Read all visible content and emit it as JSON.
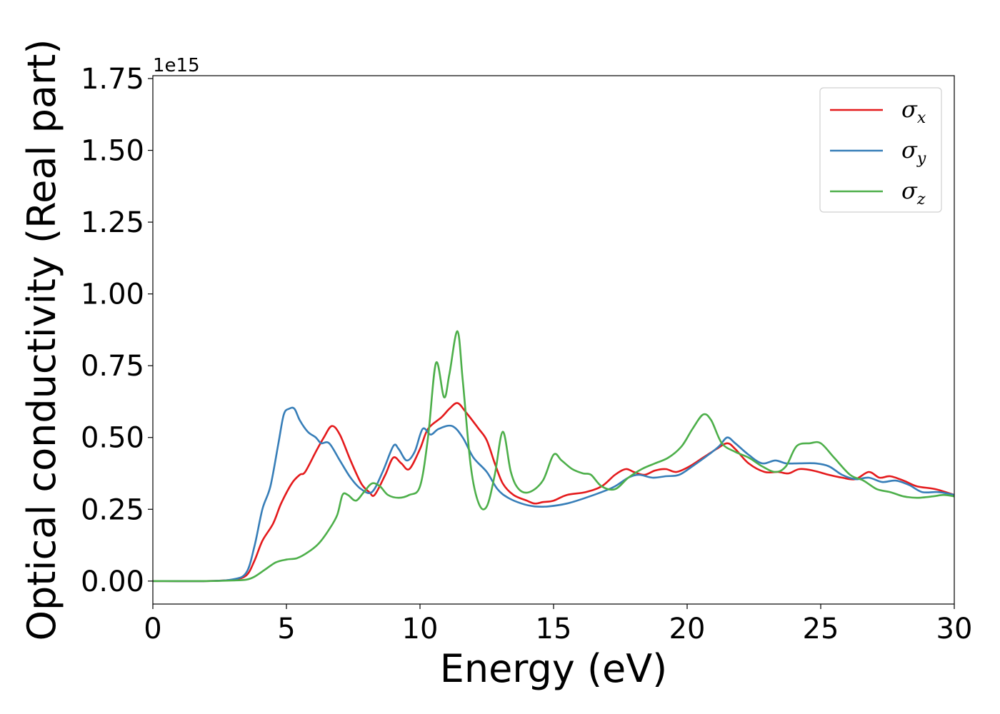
{
  "chart_data": {
    "type": "line",
    "xlabel": "Energy (eV)",
    "ylabel": "Optical conductivity (Real part)",
    "y_offset_label": "1e15",
    "xlim": [
      0,
      30
    ],
    "ylim": [
      -0.08,
      1.76
    ],
    "x_ticks": [
      0,
      5,
      10,
      15,
      20,
      25,
      30
    ],
    "x_tick_labels": [
      "0",
      "5",
      "10",
      "15",
      "20",
      "25",
      "30"
    ],
    "y_ticks": [
      0.0,
      0.25,
      0.5,
      0.75,
      1.0,
      1.25,
      1.5,
      1.75
    ],
    "y_tick_labels": [
      "0.00",
      "0.25",
      "0.50",
      "0.75",
      "1.00",
      "1.25",
      "1.50",
      "1.75"
    ],
    "grid": false,
    "legend_position": "top-right",
    "series": [
      {
        "name": "σ",
        "subscript": "x",
        "color": "#e41a1c",
        "points": [
          [
            0,
            0.0
          ],
          [
            2,
            0.0
          ],
          [
            3,
            0.005
          ],
          [
            3.5,
            0.02
          ],
          [
            3.8,
            0.07
          ],
          [
            4.1,
            0.14
          ],
          [
            4.5,
            0.2
          ],
          [
            4.8,
            0.27
          ],
          [
            5.2,
            0.34
          ],
          [
            5.5,
            0.37
          ],
          [
            5.7,
            0.38
          ],
          [
            6.1,
            0.45
          ],
          [
            6.4,
            0.5
          ],
          [
            6.7,
            0.54
          ],
          [
            7.0,
            0.51
          ],
          [
            7.4,
            0.42
          ],
          [
            7.8,
            0.34
          ],
          [
            8.1,
            0.31
          ],
          [
            8.3,
            0.3
          ],
          [
            8.7,
            0.37
          ],
          [
            9.0,
            0.43
          ],
          [
            9.3,
            0.41
          ],
          [
            9.6,
            0.39
          ],
          [
            10.0,
            0.46
          ],
          [
            10.3,
            0.53
          ],
          [
            10.8,
            0.57
          ],
          [
            11.1,
            0.6
          ],
          [
            11.4,
            0.62
          ],
          [
            11.7,
            0.59
          ],
          [
            12.2,
            0.53
          ],
          [
            12.5,
            0.49
          ],
          [
            12.8,
            0.41
          ],
          [
            13.1,
            0.34
          ],
          [
            13.5,
            0.3
          ],
          [
            14.0,
            0.28
          ],
          [
            14.3,
            0.27
          ],
          [
            14.6,
            0.275
          ],
          [
            15.0,
            0.28
          ],
          [
            15.5,
            0.3
          ],
          [
            16.2,
            0.31
          ],
          [
            16.8,
            0.33
          ],
          [
            17.3,
            0.37
          ],
          [
            17.7,
            0.39
          ],
          [
            18.0,
            0.38
          ],
          [
            18.4,
            0.37
          ],
          [
            18.8,
            0.385
          ],
          [
            19.2,
            0.39
          ],
          [
            19.6,
            0.38
          ],
          [
            20.1,
            0.4
          ],
          [
            20.6,
            0.43
          ],
          [
            21.1,
            0.46
          ],
          [
            21.5,
            0.48
          ],
          [
            21.8,
            0.46
          ],
          [
            22.3,
            0.41
          ],
          [
            22.9,
            0.38
          ],
          [
            23.4,
            0.38
          ],
          [
            23.8,
            0.375
          ],
          [
            24.2,
            0.39
          ],
          [
            24.7,
            0.385
          ],
          [
            25.3,
            0.37
          ],
          [
            25.8,
            0.36
          ],
          [
            26.3,
            0.355
          ],
          [
            26.8,
            0.38
          ],
          [
            27.2,
            0.36
          ],
          [
            27.6,
            0.365
          ],
          [
            28.1,
            0.35
          ],
          [
            28.6,
            0.33
          ],
          [
            29.3,
            0.32
          ],
          [
            30,
            0.3
          ]
        ]
      },
      {
        "name": "σ",
        "subscript": "y",
        "color": "#377eb8",
        "points": [
          [
            0,
            0.0
          ],
          [
            2,
            0.0
          ],
          [
            3,
            0.006
          ],
          [
            3.5,
            0.03
          ],
          [
            3.8,
            0.12
          ],
          [
            4.1,
            0.25
          ],
          [
            4.4,
            0.33
          ],
          [
            4.7,
            0.48
          ],
          [
            4.9,
            0.58
          ],
          [
            5.1,
            0.6
          ],
          [
            5.3,
            0.6
          ],
          [
            5.5,
            0.56
          ],
          [
            5.8,
            0.52
          ],
          [
            6.1,
            0.5
          ],
          [
            6.3,
            0.48
          ],
          [
            6.6,
            0.48
          ],
          [
            7.0,
            0.42
          ],
          [
            7.4,
            0.36
          ],
          [
            7.8,
            0.32
          ],
          [
            8.2,
            0.31
          ],
          [
            8.6,
            0.38
          ],
          [
            9.0,
            0.47
          ],
          [
            9.2,
            0.46
          ],
          [
            9.5,
            0.42
          ],
          [
            9.8,
            0.45
          ],
          [
            10.1,
            0.53
          ],
          [
            10.4,
            0.51
          ],
          [
            10.7,
            0.53
          ],
          [
            11.2,
            0.54
          ],
          [
            11.6,
            0.5
          ],
          [
            12.0,
            0.43
          ],
          [
            12.5,
            0.38
          ],
          [
            12.9,
            0.32
          ],
          [
            13.3,
            0.29
          ],
          [
            13.8,
            0.27
          ],
          [
            14.3,
            0.26
          ],
          [
            14.8,
            0.26
          ],
          [
            15.5,
            0.27
          ],
          [
            16.2,
            0.29
          ],
          [
            16.8,
            0.31
          ],
          [
            17.3,
            0.33
          ],
          [
            17.8,
            0.36
          ],
          [
            18.2,
            0.37
          ],
          [
            18.7,
            0.36
          ],
          [
            19.2,
            0.365
          ],
          [
            19.7,
            0.37
          ],
          [
            20.2,
            0.4
          ],
          [
            20.8,
            0.44
          ],
          [
            21.2,
            0.47
          ],
          [
            21.5,
            0.5
          ],
          [
            21.8,
            0.48
          ],
          [
            22.3,
            0.44
          ],
          [
            22.8,
            0.41
          ],
          [
            23.3,
            0.42
          ],
          [
            23.7,
            0.41
          ],
          [
            24.2,
            0.41
          ],
          [
            24.8,
            0.41
          ],
          [
            25.3,
            0.4
          ],
          [
            25.8,
            0.37
          ],
          [
            26.3,
            0.355
          ],
          [
            26.8,
            0.36
          ],
          [
            27.3,
            0.345
          ],
          [
            27.8,
            0.35
          ],
          [
            28.3,
            0.335
          ],
          [
            28.8,
            0.31
          ],
          [
            29.4,
            0.31
          ],
          [
            30,
            0.3
          ]
        ]
      },
      {
        "name": "σ",
        "subscript": "z",
        "color": "#4daf4a",
        "points": [
          [
            0,
            0.0
          ],
          [
            2,
            0.0
          ],
          [
            3,
            0.002
          ],
          [
            3.5,
            0.005
          ],
          [
            3.8,
            0.015
          ],
          [
            4.2,
            0.04
          ],
          [
            4.6,
            0.065
          ],
          [
            5.0,
            0.075
          ],
          [
            5.4,
            0.08
          ],
          [
            5.8,
            0.1
          ],
          [
            6.2,
            0.13
          ],
          [
            6.6,
            0.18
          ],
          [
            6.9,
            0.23
          ],
          [
            7.1,
            0.3
          ],
          [
            7.3,
            0.3
          ],
          [
            7.6,
            0.28
          ],
          [
            7.9,
            0.31
          ],
          [
            8.2,
            0.34
          ],
          [
            8.5,
            0.33
          ],
          [
            8.8,
            0.3
          ],
          [
            9.2,
            0.29
          ],
          [
            9.6,
            0.3
          ],
          [
            10.0,
            0.33
          ],
          [
            10.3,
            0.5
          ],
          [
            10.6,
            0.76
          ],
          [
            10.9,
            0.64
          ],
          [
            11.1,
            0.72
          ],
          [
            11.4,
            0.87
          ],
          [
            11.6,
            0.7
          ],
          [
            11.9,
            0.4
          ],
          [
            12.2,
            0.27
          ],
          [
            12.5,
            0.26
          ],
          [
            12.8,
            0.37
          ],
          [
            13.1,
            0.52
          ],
          [
            13.4,
            0.38
          ],
          [
            13.7,
            0.32
          ],
          [
            14.1,
            0.31
          ],
          [
            14.6,
            0.35
          ],
          [
            15.0,
            0.44
          ],
          [
            15.3,
            0.42
          ],
          [
            15.7,
            0.39
          ],
          [
            16.1,
            0.375
          ],
          [
            16.4,
            0.37
          ],
          [
            16.8,
            0.33
          ],
          [
            17.3,
            0.32
          ],
          [
            17.8,
            0.36
          ],
          [
            18.3,
            0.39
          ],
          [
            18.8,
            0.41
          ],
          [
            19.3,
            0.43
          ],
          [
            19.8,
            0.47
          ],
          [
            20.2,
            0.53
          ],
          [
            20.6,
            0.58
          ],
          [
            20.9,
            0.56
          ],
          [
            21.3,
            0.48
          ],
          [
            21.8,
            0.45
          ],
          [
            22.3,
            0.43
          ],
          [
            22.8,
            0.4
          ],
          [
            23.3,
            0.38
          ],
          [
            23.7,
            0.4
          ],
          [
            24.1,
            0.47
          ],
          [
            24.6,
            0.48
          ],
          [
            25.0,
            0.48
          ],
          [
            25.5,
            0.43
          ],
          [
            26.1,
            0.37
          ],
          [
            26.6,
            0.35
          ],
          [
            27.1,
            0.32
          ],
          [
            27.6,
            0.31
          ],
          [
            28.1,
            0.295
          ],
          [
            28.6,
            0.29
          ],
          [
            29.2,
            0.295
          ],
          [
            29.6,
            0.3
          ],
          [
            30,
            0.295
          ]
        ]
      }
    ]
  }
}
